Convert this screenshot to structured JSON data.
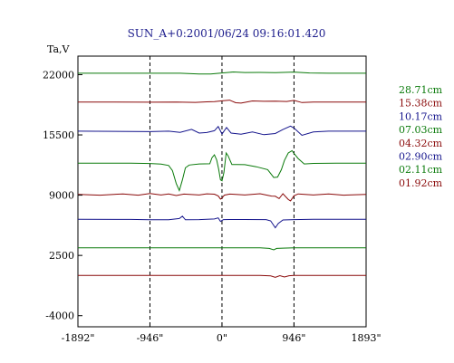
{
  "chart_data": {
    "type": "line",
    "title": "SUN_A+0:2001/06/24 09:16:01.420",
    "ylabel": "Ta,V",
    "xlabel": "",
    "xlim": [
      -1892,
      1893
    ],
    "ylim": [
      -5200,
      24000
    ],
    "x_ticks": [
      -1892,
      -946,
      0,
      946,
      1893
    ],
    "x_tick_labels": [
      "-1892\"",
      "-946\"",
      "0\"",
      "946\"",
      "1893\""
    ],
    "y_ticks": [
      22000,
      15500,
      9000,
      2500,
      -4000
    ],
    "y_tick_labels": [
      "22000",
      "15500",
      "9000",
      "2500",
      "-4000"
    ],
    "vertical_dashed_lines": [
      -946,
      0,
      946
    ],
    "grid": false,
    "legend_position": "right",
    "series": [
      {
        "name": "28.71cm",
        "color": "#0a7a0a",
        "baseline": 22150,
        "points": [
          [
            -1892,
            0
          ],
          [
            -946,
            0
          ],
          [
            -550,
            0
          ],
          [
            -300,
            -70
          ],
          [
            -150,
            -70
          ],
          [
            0,
            30
          ],
          [
            150,
            140
          ],
          [
            300,
            80
          ],
          [
            500,
            90
          ],
          [
            700,
            70
          ],
          [
            946,
            130
          ],
          [
            1150,
            30
          ],
          [
            1400,
            0
          ],
          [
            1893,
            0
          ]
        ]
      },
      {
        "name": "15.38cm",
        "color": "#8a0a0a",
        "baseline": 19050,
        "points": [
          [
            -1892,
            0
          ],
          [
            -946,
            -20
          ],
          [
            -600,
            0
          ],
          [
            -350,
            -40
          ],
          [
            -200,
            20
          ],
          [
            -100,
            50
          ],
          [
            0,
            130
          ],
          [
            100,
            200
          ],
          [
            180,
            -80
          ],
          [
            250,
            -120
          ],
          [
            400,
            120
          ],
          [
            550,
            80
          ],
          [
            700,
            90
          ],
          [
            850,
            60
          ],
          [
            946,
            170
          ],
          [
            1050,
            -60
          ],
          [
            1200,
            0
          ],
          [
            1893,
            0
          ]
        ]
      },
      {
        "name": "10.17cm",
        "color": "#14148c",
        "baseline": 15900,
        "points": [
          [
            -1892,
            0
          ],
          [
            -946,
            -40
          ],
          [
            -700,
            0
          ],
          [
            -550,
            -120
          ],
          [
            -400,
            200
          ],
          [
            -300,
            -200
          ],
          [
            -200,
            -140
          ],
          [
            -100,
            50
          ],
          [
            -50,
            500
          ],
          [
            0,
            -300
          ],
          [
            60,
            400
          ],
          [
            120,
            -200
          ],
          [
            250,
            -330
          ],
          [
            400,
            -80
          ],
          [
            550,
            -380
          ],
          [
            700,
            -250
          ],
          [
            800,
            180
          ],
          [
            900,
            550
          ],
          [
            946,
            350
          ],
          [
            1050,
            -450
          ],
          [
            1200,
            -80
          ],
          [
            1400,
            0
          ],
          [
            1893,
            0
          ]
        ]
      },
      {
        "name": "07.03cm",
        "color": "#0a7a0a",
        "baseline": 12450,
        "points": [
          [
            -1892,
            0
          ],
          [
            -1200,
            0
          ],
          [
            -946,
            -30
          ],
          [
            -800,
            -100
          ],
          [
            -700,
            -250
          ],
          [
            -650,
            -800
          ],
          [
            -600,
            -2200
          ],
          [
            -560,
            -2950
          ],
          [
            -520,
            -1800
          ],
          [
            -480,
            -500
          ],
          [
            -430,
            -200
          ],
          [
            -300,
            -80
          ],
          [
            -160,
            -60
          ],
          [
            -130,
            600
          ],
          [
            -100,
            900
          ],
          [
            -70,
            350
          ],
          [
            -45,
            -600
          ],
          [
            -20,
            -1800
          ],
          [
            0,
            -1900
          ],
          [
            25,
            -1000
          ],
          [
            55,
            1100
          ],
          [
            80,
            800
          ],
          [
            130,
            -150
          ],
          [
            200,
            -150
          ],
          [
            300,
            -160
          ],
          [
            450,
            -380
          ],
          [
            600,
            -700
          ],
          [
            680,
            -1550
          ],
          [
            730,
            -1500
          ],
          [
            780,
            -700
          ],
          [
            820,
            300
          ],
          [
            870,
            1100
          ],
          [
            920,
            1350
          ],
          [
            946,
            1050
          ],
          [
            1000,
            500
          ],
          [
            1080,
            -80
          ],
          [
            1200,
            -20
          ],
          [
            1500,
            0
          ],
          [
            1893,
            0
          ]
        ]
      },
      {
        "name": "04.32cm",
        "color": "#8a0a0a",
        "baseline": 9080,
        "points": [
          [
            -1892,
            0
          ],
          [
            -1600,
            -80
          ],
          [
            -1300,
            60
          ],
          [
            -1100,
            -80
          ],
          [
            -946,
            100
          ],
          [
            -800,
            -60
          ],
          [
            -700,
            50
          ],
          [
            -600,
            -120
          ],
          [
            -500,
            40
          ],
          [
            -300,
            -60
          ],
          [
            -200,
            70
          ],
          [
            -100,
            30
          ],
          [
            -50,
            -160
          ],
          [
            -20,
            -500
          ],
          [
            0,
            -400
          ],
          [
            30,
            -80
          ],
          [
            100,
            40
          ],
          [
            300,
            -60
          ],
          [
            500,
            80
          ],
          [
            650,
            -180
          ],
          [
            700,
            -200
          ],
          [
            750,
            -450
          ],
          [
            800,
            80
          ],
          [
            870,
            -550
          ],
          [
            900,
            -700
          ],
          [
            946,
            -150
          ],
          [
            1000,
            60
          ],
          [
            1200,
            -60
          ],
          [
            1400,
            50
          ],
          [
            1600,
            -80
          ],
          [
            1893,
            0
          ]
        ]
      },
      {
        "name": "02.90cm",
        "color": "#14148c",
        "baseline": 6400,
        "points": [
          [
            -1892,
            0
          ],
          [
            -1200,
            -20
          ],
          [
            -946,
            -60
          ],
          [
            -700,
            -50
          ],
          [
            -560,
            80
          ],
          [
            -520,
            330
          ],
          [
            -480,
            -60
          ],
          [
            -300,
            -40
          ],
          [
            -100,
            30
          ],
          [
            -50,
            150
          ],
          [
            -20,
            -230
          ],
          [
            20,
            -40
          ],
          [
            100,
            -30
          ],
          [
            300,
            -30
          ],
          [
            580,
            -40
          ],
          [
            640,
            -170
          ],
          [
            700,
            -920
          ],
          [
            740,
            -450
          ],
          [
            800,
            -80
          ],
          [
            946,
            -40
          ],
          [
            1200,
            0
          ],
          [
            1893,
            0
          ]
        ]
      },
      {
        "name": "02.11cm",
        "color": "#0a7a0a",
        "baseline": 3320,
        "points": [
          [
            -1892,
            0
          ],
          [
            -946,
            0
          ],
          [
            500,
            0
          ],
          [
            620,
            -60
          ],
          [
            680,
            -220
          ],
          [
            720,
            -60
          ],
          [
            800,
            -30
          ],
          [
            946,
            0
          ],
          [
            1893,
            0
          ]
        ]
      },
      {
        "name": "01.92cm",
        "color": "#8a0a0a",
        "baseline": 350,
        "points": [
          [
            -1892,
            0
          ],
          [
            -946,
            0
          ],
          [
            500,
            0
          ],
          [
            640,
            -60
          ],
          [
            700,
            -220
          ],
          [
            760,
            -30
          ],
          [
            820,
            -180
          ],
          [
            880,
            -40
          ],
          [
            946,
            0
          ],
          [
            1893,
            0
          ]
        ]
      }
    ]
  }
}
